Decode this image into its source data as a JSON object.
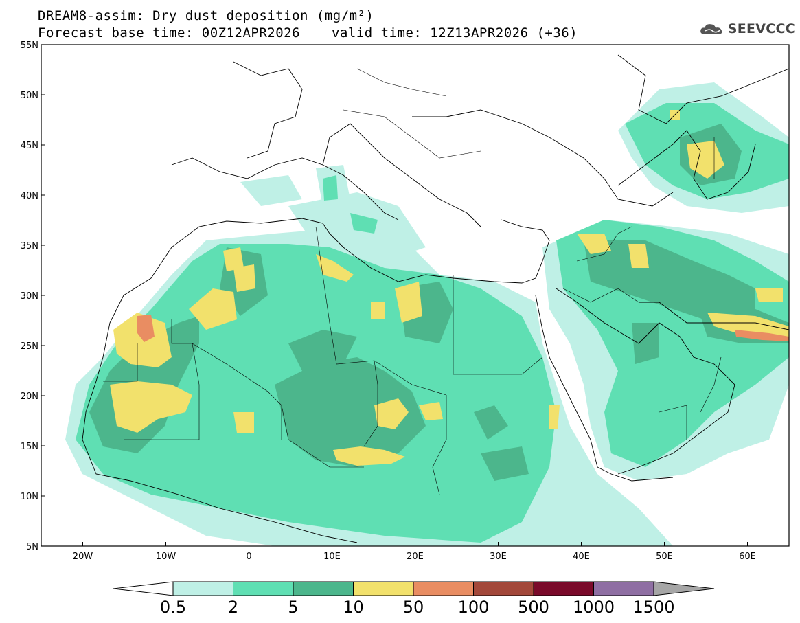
{
  "header": {
    "title": "DREAM8-assim: Dry dust deposition (mg/m²)",
    "base_time": "Forecast base time: 00Z12APR2026",
    "valid_time": "valid time: 12Z13APR2026 (+36)",
    "logo_text": "SEEVCCC"
  },
  "map": {
    "lon_range": [
      -25,
      65
    ],
    "lat_range": [
      5,
      55
    ],
    "lat_ticks": [
      "5N",
      "10N",
      "15N",
      "20N",
      "25N",
      "30N",
      "35N",
      "40N",
      "45N",
      "50N",
      "55N"
    ],
    "lon_ticks": [
      "20W",
      "10W",
      "0",
      "10E",
      "20E",
      "30E",
      "40E",
      "50E",
      "60E"
    ]
  },
  "colorbar": {
    "levels": [
      "0.5",
      "2",
      "5",
      "10",
      "50",
      "100",
      "500",
      "1000",
      "1500"
    ],
    "colors": [
      "#bff0e6",
      "#5fdfb3",
      "#4cb68c",
      "#f2e16c",
      "#e98d62",
      "#a3483a",
      "#7a0a2a",
      "#8f6fa3",
      "#a6a6a6"
    ]
  }
}
